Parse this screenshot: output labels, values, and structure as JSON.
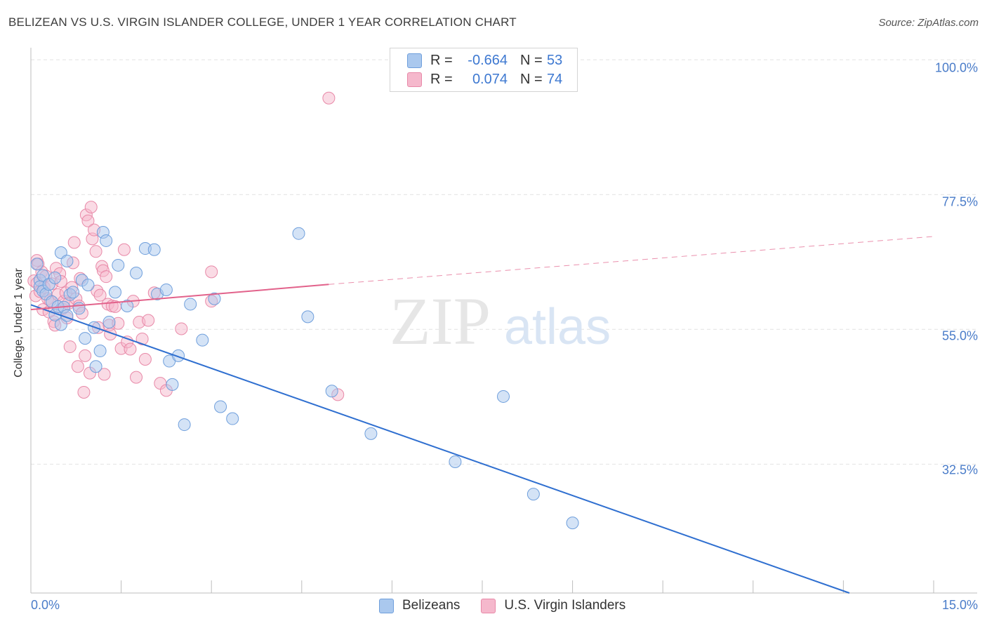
{
  "title": "BELIZEAN VS U.S. VIRGIN ISLANDER COLLEGE, UNDER 1 YEAR CORRELATION CHART",
  "source": "Source: ZipAtlas.com",
  "watermark": {
    "zip": "ZIP",
    "atlas": "atlas"
  },
  "colors": {
    "blue_fill": "#aac8ee",
    "blue_stroke": "#6f9fdc",
    "blue_line": "#2f6fd0",
    "pink_fill": "#f5b8cc",
    "pink_stroke": "#e889a8",
    "pink_line": "#e2628b",
    "tick_text": "#4a7cc9",
    "grid": "#e2e2e2"
  },
  "legend": {
    "rows": [
      {
        "r_label": "R =",
        "r_value": "-0.664",
        "n_label": "N =",
        "n_value": "53"
      },
      {
        "r_label": "R =",
        "r_value": "0.074",
        "n_label": "N =",
        "n_value": "74"
      }
    ]
  },
  "bottom_legend": {
    "series1": "Belizeans",
    "series2": "U.S. Virgin Islanders"
  },
  "axis": {
    "y_label": "College, Under 1 year",
    "y_ticks": [
      "100.0%",
      "77.5%",
      "55.0%",
      "32.5%"
    ],
    "x_min_label": "0.0%",
    "x_max_label": "15.0%"
  },
  "chart_data": {
    "type": "scatter",
    "title": "BELIZEAN VS U.S. VIRGIN ISLANDER COLLEGE, UNDER 1 YEAR CORRELATION CHART",
    "xlabel": "",
    "ylabel": "College, Under 1 year",
    "xlim": [
      0,
      15
    ],
    "ylim": [
      11,
      102
    ],
    "y_grid_values": [
      100,
      77.5,
      55,
      32.5
    ],
    "series": [
      {
        "name": "Belizeans",
        "r": -0.664,
        "n": 53,
        "trend": {
          "x0": 0.0,
          "y0": 59.1,
          "x1": 13.6,
          "y1": 11.0,
          "dashed_to": null
        },
        "points": [
          [
            0.1,
            65.9
          ],
          [
            0.15,
            63.2
          ],
          [
            0.15,
            62.1
          ],
          [
            0.2,
            61.4
          ],
          [
            0.2,
            64.0
          ],
          [
            0.25,
            60.9
          ],
          [
            0.3,
            62.5
          ],
          [
            0.35,
            59.6
          ],
          [
            0.4,
            57.4
          ],
          [
            0.4,
            63.6
          ],
          [
            0.45,
            58.8
          ],
          [
            0.5,
            55.8
          ],
          [
            0.5,
            67.8
          ],
          [
            0.55,
            58.7
          ],
          [
            0.6,
            57.3
          ],
          [
            0.6,
            66.4
          ],
          [
            0.65,
            60.8
          ],
          [
            0.7,
            61.2
          ],
          [
            0.8,
            58.5
          ],
          [
            0.85,
            63.2
          ],
          [
            0.9,
            53.5
          ],
          [
            0.95,
            62.4
          ],
          [
            1.05,
            55.3
          ],
          [
            1.08,
            48.8
          ],
          [
            1.15,
            51.4
          ],
          [
            1.2,
            71.2
          ],
          [
            1.25,
            69.8
          ],
          [
            1.3,
            56.2
          ],
          [
            1.4,
            61.2
          ],
          [
            1.45,
            65.7
          ],
          [
            1.6,
            58.9
          ],
          [
            1.75,
            64.4
          ],
          [
            1.9,
            68.5
          ],
          [
            2.05,
            68.3
          ],
          [
            2.1,
            60.9
          ],
          [
            2.25,
            61.6
          ],
          [
            2.3,
            49.7
          ],
          [
            2.35,
            45.8
          ],
          [
            2.45,
            50.6
          ],
          [
            2.55,
            39.1
          ],
          [
            2.65,
            59.2
          ],
          [
            2.85,
            53.2
          ],
          [
            3.05,
            60.1
          ],
          [
            3.15,
            42.1
          ],
          [
            3.35,
            40.1
          ],
          [
            4.45,
            71.0
          ],
          [
            4.6,
            57.1
          ],
          [
            5.0,
            44.7
          ],
          [
            5.65,
            37.6
          ],
          [
            7.05,
            32.9
          ],
          [
            7.85,
            43.8
          ],
          [
            8.35,
            27.5
          ],
          [
            9.0,
            22.7
          ]
        ]
      },
      {
        "name": "U.S. Virgin Islanders",
        "r": 0.074,
        "n": 74,
        "trend": {
          "x0": 0.0,
          "y0": 58.3,
          "x1": 4.95,
          "y1": 62.5,
          "dashed_to": [
            15.0,
            70.5
          ]
        },
        "points": [
          [
            0.05,
            63.1
          ],
          [
            0.08,
            60.6
          ],
          [
            0.1,
            66.5
          ],
          [
            0.1,
            62.7
          ],
          [
            0.12,
            65.9
          ],
          [
            0.15,
            61.3
          ],
          [
            0.18,
            64.6
          ],
          [
            0.2,
            58.3
          ],
          [
            0.22,
            62.0
          ],
          [
            0.25,
            63.9
          ],
          [
            0.28,
            60.1
          ],
          [
            0.3,
            57.9
          ],
          [
            0.32,
            59.8
          ],
          [
            0.35,
            62.6
          ],
          [
            0.38,
            56.3
          ],
          [
            0.4,
            55.7
          ],
          [
            0.42,
            65.2
          ],
          [
            0.45,
            60.8
          ],
          [
            0.48,
            64.3
          ],
          [
            0.5,
            63.0
          ],
          [
            0.52,
            58.4
          ],
          [
            0.55,
            59.7
          ],
          [
            0.58,
            61.1
          ],
          [
            0.6,
            56.9
          ],
          [
            0.62,
            59.3
          ],
          [
            0.65,
            52.1
          ],
          [
            0.68,
            62.0
          ],
          [
            0.7,
            66.1
          ],
          [
            0.72,
            69.5
          ],
          [
            0.75,
            60.1
          ],
          [
            0.78,
            48.8
          ],
          [
            0.8,
            58.9
          ],
          [
            0.82,
            63.5
          ],
          [
            0.85,
            57.7
          ],
          [
            0.88,
            44.5
          ],
          [
            0.9,
            50.6
          ],
          [
            0.92,
            74.1
          ],
          [
            0.95,
            73.1
          ],
          [
            0.98,
            47.7
          ],
          [
            1.0,
            75.4
          ],
          [
            1.02,
            70.1
          ],
          [
            1.05,
            71.6
          ],
          [
            1.08,
            68.0
          ],
          [
            1.1,
            61.4
          ],
          [
            1.12,
            55.3
          ],
          [
            1.15,
            60.7
          ],
          [
            1.18,
            65.5
          ],
          [
            1.2,
            64.8
          ],
          [
            1.22,
            47.5
          ],
          [
            1.25,
            63.8
          ],
          [
            1.28,
            59.2
          ],
          [
            1.3,
            55.7
          ],
          [
            1.32,
            54.2
          ],
          [
            1.35,
            58.9
          ],
          [
            1.4,
            58.8
          ],
          [
            1.45,
            56.0
          ],
          [
            1.5,
            51.8
          ],
          [
            1.55,
            68.3
          ],
          [
            1.6,
            52.9
          ],
          [
            1.65,
            51.7
          ],
          [
            1.7,
            59.7
          ],
          [
            1.75,
            47.0
          ],
          [
            1.8,
            56.2
          ],
          [
            1.85,
            53.4
          ],
          [
            1.9,
            50.0
          ],
          [
            1.95,
            56.5
          ],
          [
            2.05,
            61.1
          ],
          [
            2.15,
            46.0
          ],
          [
            2.25,
            44.8
          ],
          [
            2.5,
            55.1
          ],
          [
            3.0,
            64.6
          ],
          [
            3.0,
            59.7
          ],
          [
            4.95,
            93.6
          ],
          [
            5.1,
            44.1
          ]
        ]
      }
    ]
  }
}
